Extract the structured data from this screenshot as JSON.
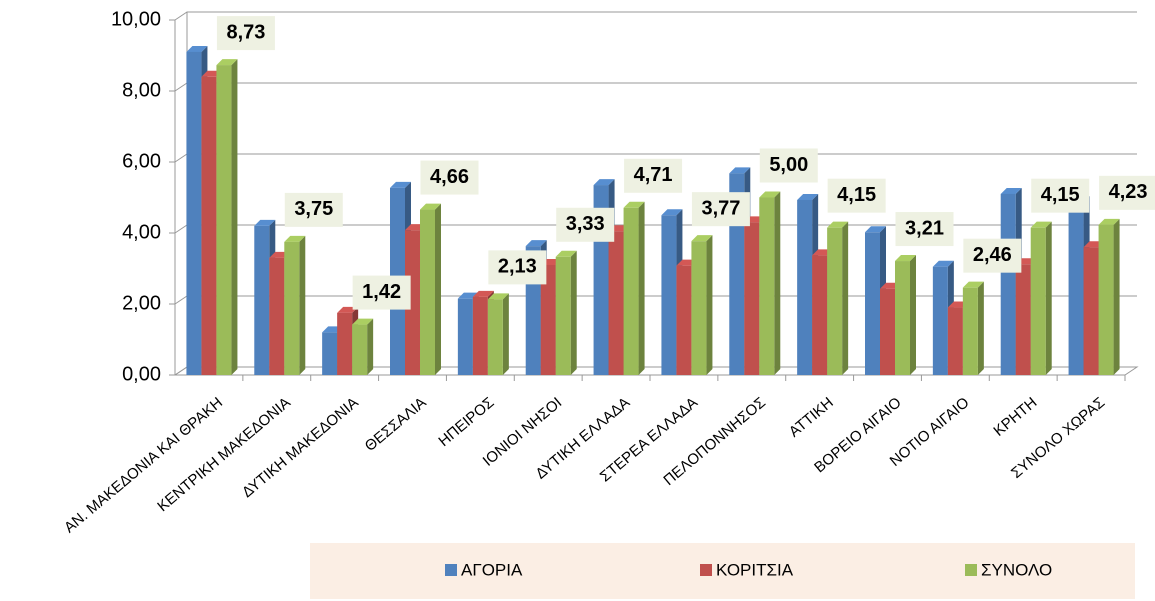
{
  "chart_data": {
    "type": "bar",
    "categories": [
      "ΑΝ. ΜΑΚΕΔΟΝΙΑ ΚΑΙ ΘΡΑΚΗ",
      "ΚΕΝΤΡΙΚΗ ΜΑΚΕΔΟΝΙΑ",
      "ΔΥΤΙΚΗ ΜΑΚΕΔΟΝΙΑ",
      "ΘΕΣΣΑΛΙΑ",
      "ΗΠΕΙΡΟΣ",
      "ΙΟΝΙΟΙ ΝΗΣΟΙ",
      "ΔΥΤΙΚΗ ΕΛΛΑΔΑ",
      "ΣΤΕΡΕΑ ΕΛΛΑΔΑ",
      "ΠΕΛΟΠΟΝΝΗΣΟΣ",
      "ΑΤΤΙΚΗ",
      "ΒΟΡΕΙΟ ΑΙΓΑΙΟ",
      "ΝΟΤΙΟ ΑΙΓΑΙΟ",
      "ΚΡΗΤΗ",
      "ΣΥΝΟΛΟ ΧΩΡΑΣ"
    ],
    "series": [
      {
        "name": "ΑΓΟΡΙΑ",
        "color": "#4f81bd",
        "values": [
          9.1,
          4.2,
          1.2,
          5.27,
          2.15,
          3.63,
          5.35,
          4.5,
          5.68,
          4.93,
          4.02,
          3.05,
          5.1,
          4.87
        ]
      },
      {
        "name": "ΚΟΡΙΤΣΙΑ",
        "color": "#c0504d",
        "values": [
          8.4,
          3.3,
          1.75,
          4.08,
          2.2,
          3.1,
          4.05,
          3.08,
          4.3,
          3.37,
          2.43,
          1.9,
          3.12,
          3.6
        ]
      },
      {
        "name": "ΣΥΝΟΛΟ",
        "color": "#9bbb59",
        "values": [
          8.73,
          3.75,
          1.42,
          4.66,
          2.13,
          3.33,
          4.71,
          3.77,
          5.0,
          4.15,
          3.21,
          2.46,
          4.15,
          4.23
        ],
        "value_labels": [
          "8,73",
          "3,75",
          "1,42",
          "4,66",
          "2,13",
          "3,33",
          "4,71",
          "3,77",
          "5,00",
          "4,15",
          "3,21",
          "2,46",
          "4,15",
          "4,23"
        ]
      }
    ],
    "ylim": [
      0,
      10
    ],
    "yticks": [
      {
        "value": 0,
        "label": "0,00"
      },
      {
        "value": 2,
        "label": "2,00"
      },
      {
        "value": 4,
        "label": "4,00"
      },
      {
        "value": 6,
        "label": "6,00"
      },
      {
        "value": 8,
        "label": "8,00"
      },
      {
        "value": 10,
        "label": "10,00"
      }
    ],
    "grid": true,
    "legend": "bottom"
  }
}
